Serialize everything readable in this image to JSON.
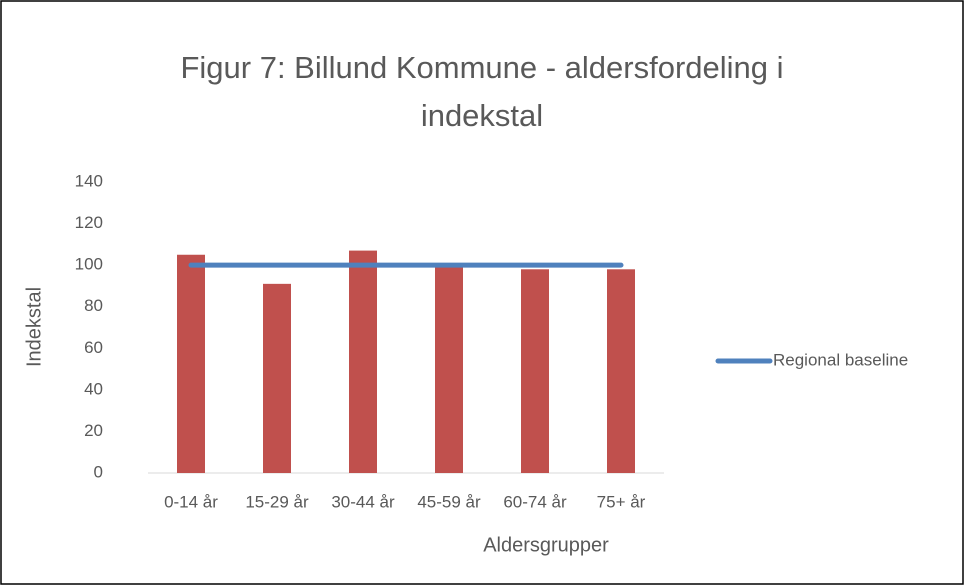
{
  "chart_data": {
    "type": "bar",
    "title": "Figur 7: Billund Kommune - aldersfordeling i indekstal",
    "x_label": "Aldersgrupper",
    "y_label": "Indekstal",
    "categories": [
      "0-14 år",
      "15-29 år",
      "30-44 år",
      "45-59 år",
      "60-74 år",
      "75+ år"
    ],
    "series": [
      {
        "color": "#c0504d",
        "values": [
          105,
          91,
          107,
          99,
          98,
          98
        ]
      },
      {
        "name": "Regional baseline",
        "type": "line",
        "color": "#4f81bd",
        "values": [
          100,
          100,
          100,
          100,
          100,
          100
        ]
      }
    ],
    "ylim": [
      0,
      140
    ],
    "yticks": [
      0,
      20,
      40,
      60,
      80,
      100,
      120,
      140
    ],
    "grid": false,
    "legend": "right"
  }
}
